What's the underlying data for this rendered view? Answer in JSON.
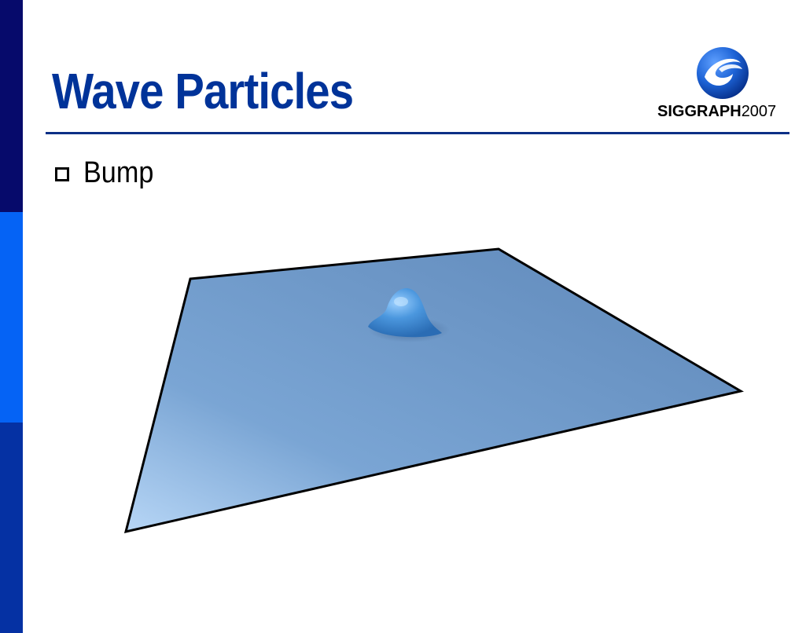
{
  "slide": {
    "title": "Wave Particles",
    "bullets": [
      {
        "text": "Bump"
      }
    ]
  },
  "logo": {
    "brand": "SIGGRAPH",
    "year": "2007"
  },
  "colors": {
    "title": "#003399",
    "rule": "#0b2f86",
    "sidebar_top": "#060a6b",
    "sidebar_middle": "#0563f5",
    "sidebar_bottom": "#0531a3",
    "water_surface": "#7aa5d4",
    "logo_globe": "#1d63d6"
  },
  "illustration": {
    "subject": "wave-particle-bump-on-plane",
    "icon": "water-plane-bump-icon"
  }
}
